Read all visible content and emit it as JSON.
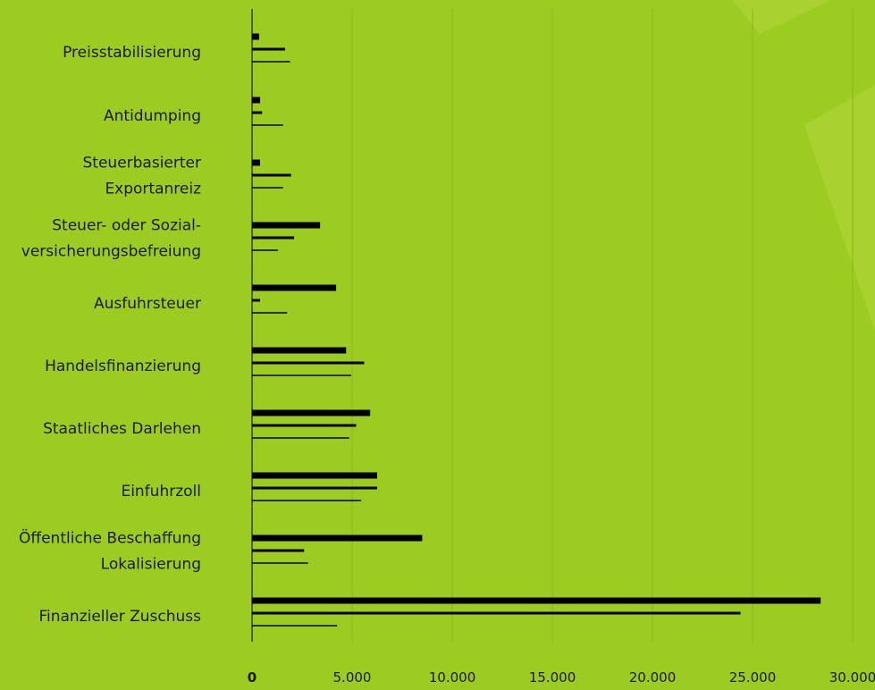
{
  "colors": {
    "background": "#9ccc22",
    "gridline": "#8ab81e",
    "decor": "#a9d12f",
    "bar": "#000000",
    "text": "#1a1a1a"
  },
  "chart_data": {
    "type": "bar",
    "orientation": "horizontal",
    "categories": [
      [
        "Preisstabilisierung"
      ],
      [
        "Antidumping"
      ],
      [
        "Steuerbasierter",
        "Exportanreiz"
      ],
      [
        "Steuer- oder Sozial-",
        "versicherungsbefreiung"
      ],
      [
        "Ausfuhrsteuer"
      ],
      [
        "Handelsfinanzierung"
      ],
      [
        "Staatliches Darlehen"
      ],
      [
        "Einfuhrzoll"
      ],
      [
        "Öffentliche Beschaffung",
        "Lokalisierung"
      ],
      [
        "Finanzieller Zuschuss"
      ]
    ],
    "series": [
      {
        "values": [
          350,
          400,
          400,
          3400,
          4200,
          4700,
          5900,
          6250,
          8500,
          28400
        ]
      },
      {
        "values": [
          1650,
          500,
          1950,
          2100,
          400,
          5600,
          5200,
          6250,
          2600,
          24400
        ]
      },
      {
        "values": [
          1900,
          1550,
          1550,
          1300,
          1750,
          4950,
          4850,
          5450,
          2800,
          4250
        ]
      }
    ],
    "x_ticks": [
      "0",
      "5.000",
      "10.000",
      "15.000",
      "20.000",
      "25.000",
      "30.000"
    ],
    "xlim": [
      0,
      30000
    ],
    "grid": true,
    "legend": "none"
  }
}
